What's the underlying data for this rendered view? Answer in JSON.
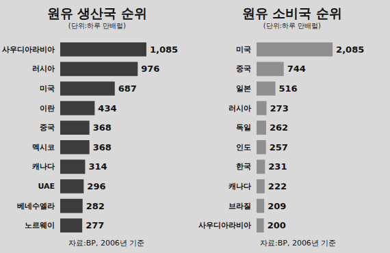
{
  "chart_data": [
    {
      "type": "bar",
      "title": "원유 생산국 순위",
      "subtitle": "(단위:하루 만배럴)",
      "categories": [
        "사우디아라비아",
        "러시아",
        "미국",
        "이란",
        "중국",
        "멕시코",
        "캐나다",
        "UAE",
        "베네수엘라",
        "노르웨이"
      ],
      "values": [
        1085,
        976,
        687,
        434,
        368,
        368,
        314,
        296,
        282,
        277
      ],
      "value_labels": [
        "1,085",
        "976",
        "687",
        "434",
        "368",
        "368",
        "314",
        "296",
        "282",
        "277"
      ],
      "color": "#3c3c3c",
      "orientation": "horizontal",
      "data_labels": true,
      "tick_labels": "y",
      "annotations": [
        "자료:BP, 2006년 기준"
      ]
    },
    {
      "type": "bar",
      "title": "원유 소비국 순위",
      "subtitle": "(단위:하루 만배럴)",
      "categories": [
        "미국",
        "중국",
        "일본",
        "러시아",
        "독일",
        "인도",
        "한국",
        "캐나다",
        "브라질",
        "사우디아라비아"
      ],
      "values": [
        2085,
        744,
        516,
        273,
        262,
        257,
        231,
        222,
        209,
        200
      ],
      "value_labels": [
        "2,085",
        "744",
        "516",
        "273",
        "262",
        "257",
        "231",
        "222",
        "209",
        "200"
      ],
      "color": "#8f8f8f",
      "orientation": "horizontal",
      "data_labels": true,
      "tick_labels": "y",
      "annotations": [
        "자료:BP, 2006년 기준"
      ]
    }
  ]
}
